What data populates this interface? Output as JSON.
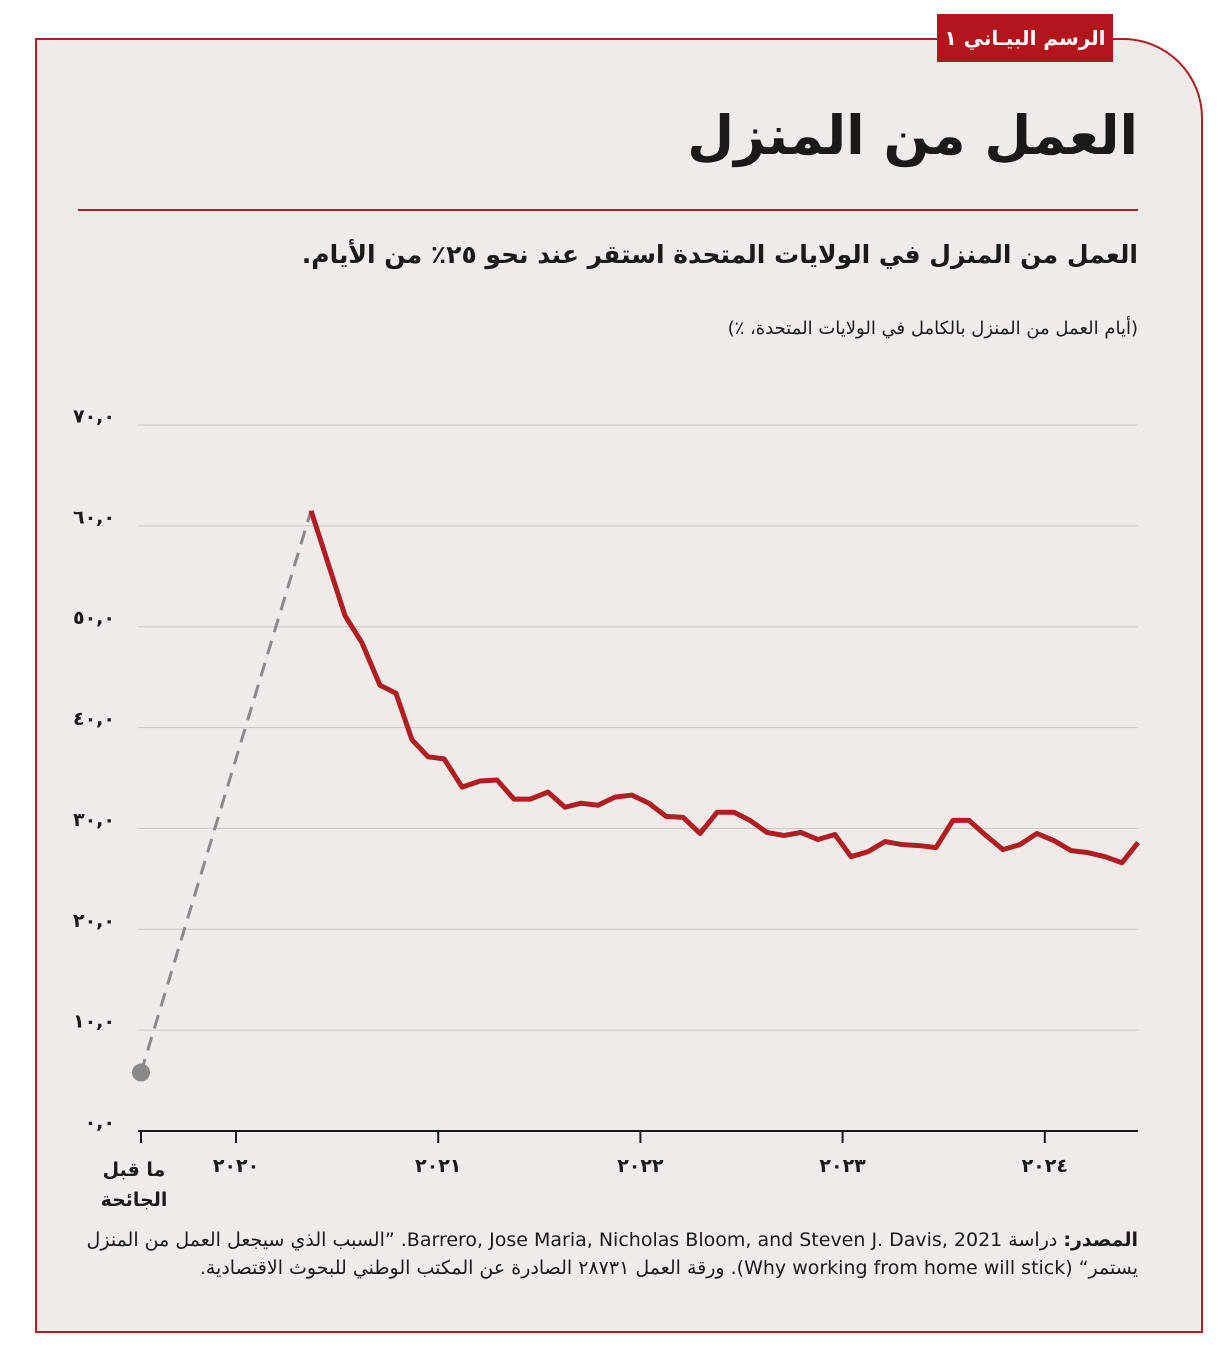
{
  "chart_data": {
    "type": "line",
    "tag": "الرسم البيـاني ١",
    "title": "العمل من المنزل",
    "subtitle": "العمل من المنزل في الولايات المتحدة استقر عند نحو ٢٥٪ من الأيام.",
    "y_label": "(أيام العمل من المنزل بالكامل في الولايات المتحدة، ٪)",
    "source_label": "المصدر:",
    "source_text": "دراسة Barrero, Jose Maria, Nicholas Bloom, and Steven J. Davis, 2021. ”السبب الذي سيجعل العمل من المنزل يستمر“ (Why working from home will stick). ورقة العمل ٢٨٧٣١ الصادرة عن المكتب الوطني للبحوث الاقتصادية.",
    "xlim": [
      2019.53,
      2024.461
    ],
    "ylim": [
      0,
      70
    ],
    "yticks": [
      {
        "value": 0,
        "label": "٠,٠"
      },
      {
        "value": 10,
        "label": "١٠,٠"
      },
      {
        "value": 20,
        "label": "٢٠,٠"
      },
      {
        "value": 30,
        "label": "٣٠,٠"
      },
      {
        "value": 40,
        "label": "٤٠,٠"
      },
      {
        "value": 50,
        "label": "٥٠,٠"
      },
      {
        "value": 60,
        "label": "٦٠,٠"
      },
      {
        "value": 70,
        "label": "٧٠,٠"
      }
    ],
    "xticks": [
      {
        "value": 2019.53,
        "label": "ما قبل الجائحة"
      },
      {
        "value": 2020,
        "label": "٢٠٢٠"
      },
      {
        "value": 2021,
        "label": "٢٠٢١"
      },
      {
        "value": 2022,
        "label": "٢٠٢٢"
      },
      {
        "value": 2023,
        "label": "٢٠٢٣"
      },
      {
        "value": 2024,
        "label": "٢٠٢٤"
      }
    ],
    "grid": true,
    "series": [
      {
        "color": "#b01e23",
        "x": [
          2020.371,
          2020.539,
          2020.623,
          2020.712,
          2020.791,
          2020.87,
          2020.95,
          2021.029,
          2021.118,
          2021.207,
          2021.291,
          2021.375,
          2021.454,
          2021.543,
          2021.627,
          2021.706,
          2021.79,
          2021.874,
          2021.958,
          2022.042,
          2022.127,
          2022.211,
          2022.295,
          2022.379,
          2022.463,
          2022.542,
          2022.626,
          2022.71,
          2022.794,
          2022.878,
          2022.962,
          2023.042,
          2023.126,
          2023.21,
          2023.294,
          2023.378,
          2023.462,
          2023.546,
          2023.625,
          2023.709,
          2023.793,
          2023.877,
          2023.961,
          2024.045,
          2024.13,
          2024.214,
          2024.298,
          2024.382,
          2024.461
        ],
        "values": [
          61.5,
          51.1,
          48.4,
          44.2,
          43.4,
          38.8,
          37.1,
          36.9,
          34.1,
          34.7,
          34.8,
          32.9,
          32.9,
          33.6,
          32.1,
          32.5,
          32.3,
          33.1,
          33.3,
          32.5,
          31.2,
          31.1,
          29.5,
          31.6,
          31.6,
          30.8,
          29.6,
          29.3,
          29.6,
          28.9,
          29.4,
          27.2,
          27.7,
          28.7,
          28.4,
          28.3,
          28.1,
          30.8,
          30.8,
          29.3,
          27.9,
          28.4,
          29.5,
          28.8,
          27.8,
          27.6,
          27.2,
          26.6,
          28.6
        ]
      },
      {
        "color": "#8a8a8a",
        "dashed": true,
        "start_marker": true,
        "x": [
          2019.53,
          2020.371
        ],
        "values": [
          5.8,
          61.5
        ]
      }
    ]
  }
}
